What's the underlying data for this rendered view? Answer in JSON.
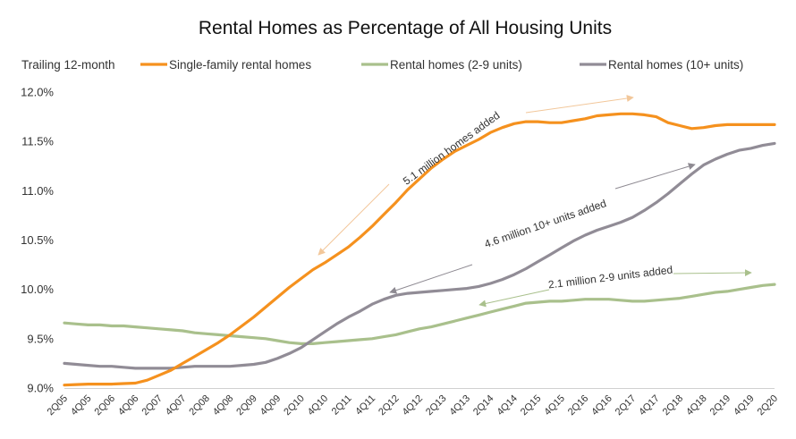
{
  "chart_data": {
    "type": "line",
    "title": "Rental Homes as Percentage of All Housing Units",
    "legend_caption": "Trailing 12-month",
    "legend_position": "top",
    "grid": false,
    "ylim": [
      9.0,
      12.0
    ],
    "yticks": [
      "9.0%",
      "9.5%",
      "10.0%",
      "10.5%",
      "11.0%",
      "11.5%",
      "12.0%"
    ],
    "ytick_values": [
      9.0,
      9.5,
      10.0,
      10.5,
      11.0,
      11.5,
      12.0
    ],
    "x": [
      "2Q05",
      "3Q05",
      "4Q05",
      "1Q06",
      "2Q06",
      "3Q06",
      "4Q06",
      "1Q07",
      "2Q07",
      "3Q07",
      "4Q07",
      "1Q08",
      "2Q08",
      "3Q08",
      "4Q08",
      "1Q09",
      "2Q09",
      "3Q09",
      "4Q09",
      "1Q10",
      "2Q10",
      "3Q10",
      "4Q10",
      "1Q11",
      "2Q11",
      "3Q11",
      "4Q11",
      "1Q12",
      "2Q12",
      "3Q12",
      "4Q12",
      "1Q13",
      "2Q13",
      "3Q13",
      "4Q13",
      "1Q14",
      "2Q14",
      "3Q14",
      "4Q14",
      "1Q15",
      "2Q15",
      "3Q15",
      "4Q15",
      "1Q16",
      "2Q16",
      "3Q16",
      "4Q16",
      "1Q17",
      "2Q17",
      "3Q17",
      "4Q17",
      "1Q18",
      "2Q18",
      "3Q18",
      "4Q18",
      "1Q19",
      "2Q19",
      "3Q19",
      "4Q19",
      "1Q20",
      "2Q20"
    ],
    "xticks": [
      "2Q05",
      "4Q05",
      "2Q06",
      "4Q06",
      "2Q07",
      "4Q07",
      "2Q08",
      "4Q08",
      "2Q09",
      "4Q09",
      "2Q10",
      "4Q10",
      "2Q11",
      "4Q11",
      "2Q12",
      "4Q12",
      "2Q13",
      "4Q13",
      "2Q14",
      "4Q14",
      "2Q15",
      "4Q15",
      "2Q16",
      "4Q16",
      "2Q17",
      "4Q17",
      "2Q18",
      "4Q18",
      "2Q19",
      "4Q19",
      "2Q20"
    ],
    "series": [
      {
        "name": "Single-family rental homes",
        "color": "#F5911E",
        "values": [
          9.03,
          9.035,
          9.04,
          9.04,
          9.04,
          9.045,
          9.05,
          9.08,
          9.13,
          9.18,
          9.25,
          9.32,
          9.39,
          9.46,
          9.54,
          9.63,
          9.72,
          9.82,
          9.92,
          10.02,
          10.11,
          10.2,
          10.27,
          10.35,
          10.43,
          10.53,
          10.64,
          10.76,
          10.88,
          11.01,
          11.12,
          11.23,
          11.32,
          11.4,
          11.46,
          11.52,
          11.59,
          11.64,
          11.68,
          11.7,
          11.7,
          11.69,
          11.69,
          11.71,
          11.73,
          11.76,
          11.77,
          11.78,
          11.78,
          11.77,
          11.75,
          11.69,
          11.66,
          11.63,
          11.64,
          11.66,
          11.67,
          11.67,
          11.67,
          11.67,
          11.67
        ]
      },
      {
        "name": "Rental homes (2-9 units)",
        "color": "#A9C08C",
        "values": [
          9.66,
          9.65,
          9.64,
          9.64,
          9.63,
          9.63,
          9.62,
          9.61,
          9.6,
          9.59,
          9.58,
          9.56,
          9.55,
          9.54,
          9.53,
          9.52,
          9.51,
          9.5,
          9.48,
          9.46,
          9.45,
          9.45,
          9.46,
          9.47,
          9.48,
          9.49,
          9.5,
          9.52,
          9.54,
          9.57,
          9.6,
          9.62,
          9.65,
          9.68,
          9.71,
          9.74,
          9.77,
          9.8,
          9.83,
          9.86,
          9.87,
          9.88,
          9.88,
          9.89,
          9.9,
          9.9,
          9.9,
          9.89,
          9.88,
          9.88,
          9.89,
          9.9,
          9.91,
          9.93,
          9.95,
          9.97,
          9.98,
          10.0,
          10.02,
          10.04,
          10.05
        ]
      },
      {
        "name": "Rental homes (10+ units)",
        "color": "#918C96",
        "values": [
          9.25,
          9.24,
          9.23,
          9.22,
          9.22,
          9.21,
          9.2,
          9.2,
          9.2,
          9.2,
          9.21,
          9.22,
          9.22,
          9.22,
          9.22,
          9.23,
          9.24,
          9.26,
          9.3,
          9.35,
          9.41,
          9.49,
          9.57,
          9.65,
          9.72,
          9.78,
          9.85,
          9.9,
          9.94,
          9.96,
          9.97,
          9.98,
          9.99,
          10.0,
          10.01,
          10.03,
          10.06,
          10.1,
          10.15,
          10.21,
          10.28,
          10.35,
          10.42,
          10.49,
          10.55,
          10.6,
          10.64,
          10.68,
          10.73,
          10.8,
          10.88,
          10.97,
          11.07,
          11.17,
          11.26,
          11.32,
          11.37,
          11.41,
          11.43,
          11.46,
          11.48
        ]
      }
    ],
    "annotations": [
      {
        "text": "5.1 million homes added",
        "color": "#333333"
      },
      {
        "text": "4.6 million 10+ units added",
        "color": "#333333"
      },
      {
        "text": "2.1 million 2-9 units added",
        "color": "#333333"
      }
    ]
  }
}
